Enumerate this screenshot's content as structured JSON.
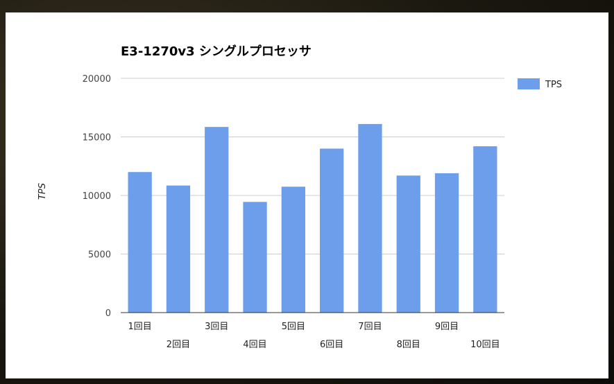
{
  "chart_data": {
    "type": "bar",
    "title": "E3-1270v3 シングルプロセッサ",
    "xlabel": "",
    "ylabel": "TPS",
    "categories": [
      "1回目",
      "2回目",
      "3回目",
      "4回目",
      "5回目",
      "6回目",
      "7回目",
      "8回目",
      "9回目",
      "10回目"
    ],
    "series": [
      {
        "name": "TPS",
        "color": "#6d9eeb",
        "values": [
          12000,
          10850,
          15850,
          9450,
          10750,
          14000,
          16100,
          11700,
          11900,
          14200
        ]
      }
    ],
    "ylim": [
      0,
      20000
    ],
    "yticks": [
      "0",
      "5000",
      "10000",
      "15000",
      "20000"
    ],
    "grid": true,
    "legend": "right"
  }
}
